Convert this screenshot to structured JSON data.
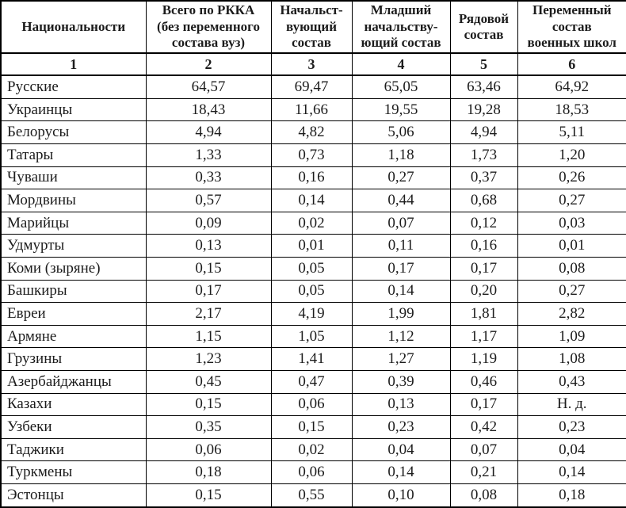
{
  "table": {
    "colors": {
      "text": "#1c1c1c",
      "border": "#000000",
      "background": "#ffffff"
    },
    "columns": [
      {
        "label": "Национальности",
        "num": "1"
      },
      {
        "label": "Всего по РККА\n(без переменного\nсостава вуз)",
        "num": "2"
      },
      {
        "label": "Начальст-\nвующий\nсостав",
        "num": "3"
      },
      {
        "label": "Младший\nначальству-\nющий состав",
        "num": "4"
      },
      {
        "label": "Рядовой\nсостав",
        "num": "5"
      },
      {
        "label": "Переменный\nсостав\nвоенных школ",
        "num": "6"
      }
    ],
    "rows": [
      {
        "name": "Русские",
        "values": [
          "64,57",
          "69,47",
          "65,05",
          "63,46",
          "64,92"
        ]
      },
      {
        "name": "Украинцы",
        "values": [
          "18,43",
          "11,66",
          "19,55",
          "19,28",
          "18,53"
        ]
      },
      {
        "name": "Белорусы",
        "values": [
          "4,94",
          "4,82",
          "5,06",
          "4,94",
          "5,11"
        ]
      },
      {
        "name": "Татары",
        "values": [
          "1,33",
          "0,73",
          "1,18",
          "1,73",
          "1,20"
        ]
      },
      {
        "name": "Чуваши",
        "values": [
          "0,33",
          "0,16",
          "0,27",
          "0,37",
          "0,26"
        ]
      },
      {
        "name": "Мордвины",
        "values": [
          "0,57",
          "0,14",
          "0,44",
          "0,68",
          "0,27"
        ]
      },
      {
        "name": "Марийцы",
        "values": [
          "0,09",
          "0,02",
          "0,07",
          "0,12",
          "0,03"
        ]
      },
      {
        "name": "Удмурты",
        "values": [
          "0,13",
          "0,01",
          "0,11",
          "0,16",
          "0,01"
        ]
      },
      {
        "name": "Коми (зыряне)",
        "values": [
          "0,15",
          "0,05",
          "0,17",
          "0,17",
          "0,08"
        ]
      },
      {
        "name": "Башкиры",
        "values": [
          "0,17",
          "0,05",
          "0,14",
          "0,20",
          "0,27"
        ]
      },
      {
        "name": "Евреи",
        "values": [
          "2,17",
          "4,19",
          "1,99",
          "1,81",
          "2,82"
        ]
      },
      {
        "name": "Армяне",
        "values": [
          "1,15",
          "1,05",
          "1,12",
          "1,17",
          "1,09"
        ]
      },
      {
        "name": "Грузины",
        "values": [
          "1,23",
          "1,41",
          "1,27",
          "1,19",
          "1,08"
        ]
      },
      {
        "name": "Азербайджанцы",
        "values": [
          "0,45",
          "0,47",
          "0,39",
          "0,46",
          "0,43"
        ]
      },
      {
        "name": "Казахи",
        "values": [
          "0,15",
          "0,06",
          "0,13",
          "0,17",
          "Н. д."
        ]
      },
      {
        "name": "Узбеки",
        "values": [
          "0,35",
          "0,15",
          "0,23",
          "0,42",
          "0,23"
        ]
      },
      {
        "name": "Таджики",
        "values": [
          "0,06",
          "0,02",
          "0,04",
          "0,07",
          "0,04"
        ]
      },
      {
        "name": "Туркмены",
        "values": [
          "0,18",
          "0,06",
          "0,14",
          "0,21",
          "0,14"
        ]
      },
      {
        "name": "Эстонцы",
        "values": [
          "0,15",
          "0,55",
          "0,10",
          "0,08",
          "0,18"
        ]
      }
    ]
  }
}
